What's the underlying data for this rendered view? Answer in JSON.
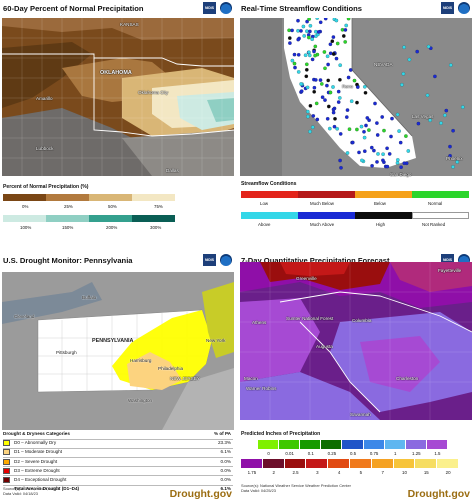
{
  "brand": "Drought.gov",
  "logos": {
    "nidis": "NIDIS",
    "noaa_icon": "noaa-logo-icon"
  },
  "panel1": {
    "title": "60-Day Percent of Normal Precipitation",
    "map_labels": [
      "KANSAS",
      "OKLAHOMA",
      "Amarillo",
      "Lubbock",
      "Oklahoma City",
      "Dallas"
    ],
    "legend_title": "Percent of Normal Precipitation (%)",
    "classes": [
      {
        "label": "0%",
        "color": "#7a4615"
      },
      {
        "label": "25%",
        "color": "#b27a3e"
      },
      {
        "label": "50%",
        "color": "#d9b676"
      },
      {
        "label": "75%",
        "color": "#f3e7c3"
      },
      {
        "label": "100%",
        "color": "#cdeae2"
      },
      {
        "label": "150%",
        "color": "#8fcfc3"
      },
      {
        "label": "200%",
        "color": "#34a08e"
      },
      {
        "label": "300%",
        "color": "#0a5e55"
      }
    ]
  },
  "panel2": {
    "title": "Real-Time Streamflow Conditions",
    "map_labels": [
      "NEVADA",
      "Reno",
      "Las Vegas",
      "Phoenix",
      "San Diego"
    ],
    "legend_title": "Streamflow Conditions",
    "row1": [
      {
        "label": "Low",
        "color": "#e3241b"
      },
      {
        "label": "Much Below",
        "color": "#b5191a"
      },
      {
        "label": "Below",
        "color": "#f5a11a"
      },
      {
        "label": "Normal",
        "color": "#2bd52b"
      }
    ],
    "row2": [
      {
        "label": "Above",
        "color": "#33d7e8"
      },
      {
        "label": "Much Above",
        "color": "#1a2ad4"
      },
      {
        "label": "High",
        "color": "#0c0c0c"
      },
      {
        "label": "Not Ranked",
        "color": "#ffffff"
      }
    ]
  },
  "panel3": {
    "title": "U.S. Drought Monitor: Pennsylvania",
    "map_labels": [
      "Buffalo",
      "Cleveland",
      "Pittsburgh",
      "PENNSYLVANIA",
      "Harrisburg",
      "NEW JERSEY",
      "Philadelphia",
      "New York",
      "Washington"
    ],
    "table_header": {
      "name": "Drought & Dryness Categories",
      "value": "% of PA"
    },
    "rows": [
      {
        "label": "D0 – Abnormally Dry",
        "value": "23.3%",
        "color": "#ffff00"
      },
      {
        "label": "D1 – Moderate Drought",
        "value": "6.1%",
        "color": "#fcd37f"
      },
      {
        "label": "D2 – Severe Drought",
        "value": "0.0%",
        "color": "#ffaa00"
      },
      {
        "label": "D3 – Extreme Drought",
        "value": "0.0%",
        "color": "#e60000"
      },
      {
        "label": "D4 – Exceptional Drought",
        "value": "0.0%",
        "color": "#730000"
      }
    ],
    "total": {
      "label": "Total Area in Drought (D1–D4)",
      "value": "6.1%"
    },
    "source_line1": "Source(s): NDMC, NOAA, USDA",
    "source_line2": "Data Valid: 04/18/23"
  },
  "panel4": {
    "title": "7-Day Quantitative Precipitation Forecast",
    "map_labels": [
      "Greenville",
      "Fayetteville",
      "Athens",
      "Sumter National Forest",
      "Columbia",
      "Augusta",
      "Charleston",
      "Macon",
      "Warner Robins",
      "Savannah"
    ],
    "legend_title": "Predicted Inches of Precipitation",
    "row1": [
      {
        "label": "0",
        "color": "#7ff000"
      },
      {
        "label": "0.01",
        "color": "#3fc800"
      },
      {
        "label": "0.1",
        "color": "#169a00"
      },
      {
        "label": "0.25",
        "color": "#0d6d00"
      },
      {
        "label": "0.5",
        "color": "#1f54c8"
      },
      {
        "label": "0.75",
        "color": "#3d88e8"
      },
      {
        "label": "1",
        "color": "#5fb6f0"
      },
      {
        "label": "1.25",
        "color": "#8a6ae0"
      },
      {
        "label": "1.5",
        "color": "#a64ad3"
      }
    ],
    "row2": [
      {
        "label": "1.75",
        "color": "#8f0fa8"
      },
      {
        "label": "2",
        "color": "#6c0e2a"
      },
      {
        "label": "2.5",
        "color": "#9a0e0e"
      },
      {
        "label": "3",
        "color": "#c41818"
      },
      {
        "label": "4",
        "color": "#e14a12"
      },
      {
        "label": "5",
        "color": "#f07a1c"
      },
      {
        "label": "7",
        "color": "#f5a223"
      },
      {
        "label": "10",
        "color": "#f7c43a"
      },
      {
        "label": "15",
        "color": "#f6dd62"
      },
      {
        "label": "20",
        "color": "#fbf08c"
      }
    ],
    "source_line1": "Source(s): National Weather Service Weather Prediction Center",
    "source_line2": "Data Valid: 04/25/23"
  }
}
